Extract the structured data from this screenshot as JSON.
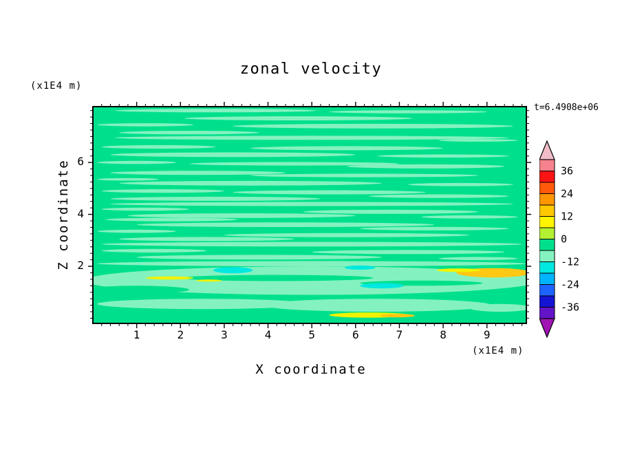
{
  "chart_data": {
    "type": "filled_contour",
    "title": "zonal velocity",
    "xlabel": "X coordinate",
    "ylabel": "Z coordinate",
    "x_unit": "(x1E4 m)",
    "y_unit": "(x1E4 m)",
    "time_label": "t=6.4908e+06",
    "x_range": [
      0,
      9.9
    ],
    "y_range": [
      -0.2,
      8.15
    ],
    "x_ticks": [
      1,
      2,
      3,
      4,
      5,
      6,
      7,
      8,
      9
    ],
    "y_ticks": [
      2,
      4,
      6
    ],
    "x_minor_step": 0.2,
    "y_minor_step": 0.25,
    "value_levels": {
      "min": -42,
      "max": 42,
      "step": 6
    },
    "background_color": "#00e08c",
    "background_value_band": [
      -6,
      0
    ],
    "streak_colors": {
      "mint": "#84f2c0",
      "cyan": "#00e8e0",
      "yellow": "#f2f200",
      "amber": "#ffc814",
      "green": "#00e08c"
    },
    "streak_value_bands": {
      "mint": [
        -12,
        -6
      ],
      "cyan": [
        -18,
        -12
      ],
      "yellow": [
        6,
        12
      ],
      "amber": [
        12,
        18
      ],
      "green": [
        -6,
        0
      ]
    },
    "streaks": [
      [
        2.8,
        8.0,
        2.3,
        0.07,
        "mint"
      ],
      [
        7.2,
        7.95,
        1.8,
        0.06,
        "mint"
      ],
      [
        4.7,
        7.7,
        2.6,
        0.08,
        "mint"
      ],
      [
        1.2,
        7.45,
        1.1,
        0.06,
        "mint"
      ],
      [
        6.4,
        7.4,
        3.2,
        0.09,
        "mint"
      ],
      [
        2.2,
        7.15,
        1.6,
        0.07,
        "mint"
      ],
      [
        5.0,
        6.95,
        4.5,
        0.08,
        "mint"
      ],
      [
        8.8,
        6.85,
        0.9,
        0.05,
        "mint"
      ],
      [
        1.5,
        6.6,
        1.3,
        0.07,
        "mint"
      ],
      [
        5.8,
        6.55,
        2.2,
        0.08,
        "mint"
      ],
      [
        3.2,
        6.3,
        2.8,
        0.09,
        "mint"
      ],
      [
        8.0,
        6.25,
        1.5,
        0.06,
        "mint"
      ],
      [
        1.0,
        6.0,
        0.9,
        0.06,
        "mint"
      ],
      [
        4.6,
        5.95,
        2.4,
        0.07,
        "mint"
      ],
      [
        7.6,
        5.85,
        1.8,
        0.08,
        "mint"
      ],
      [
        2.4,
        5.6,
        2.0,
        0.08,
        "mint"
      ],
      [
        6.2,
        5.5,
        2.6,
        0.07,
        "mint"
      ],
      [
        0.8,
        5.35,
        0.7,
        0.05,
        "mint"
      ],
      [
        3.6,
        5.2,
        3.0,
        0.09,
        "mint"
      ],
      [
        8.4,
        5.15,
        1.2,
        0.06,
        "mint"
      ],
      [
        1.6,
        4.9,
        1.4,
        0.07,
        "mint"
      ],
      [
        5.4,
        4.85,
        2.2,
        0.08,
        "mint"
      ],
      [
        7.9,
        4.7,
        1.6,
        0.07,
        "mint"
      ],
      [
        2.8,
        4.6,
        2.4,
        0.08,
        "mint"
      ],
      [
        5.0,
        4.4,
        4.6,
        0.08,
        "mint"
      ],
      [
        1.2,
        4.2,
        1.0,
        0.06,
        "mint"
      ],
      [
        6.8,
        4.1,
        2.0,
        0.08,
        "mint"
      ],
      [
        3.4,
        3.95,
        2.6,
        0.09,
        "mint"
      ],
      [
        8.6,
        3.9,
        1.1,
        0.06,
        "mint"
      ],
      [
        1.8,
        3.8,
        1.5,
        0.07,
        "mint"
      ],
      [
        4.4,
        3.6,
        3.4,
        0.09,
        "mint"
      ],
      [
        7.8,
        3.45,
        1.7,
        0.07,
        "mint"
      ],
      [
        1.0,
        3.35,
        0.9,
        0.06,
        "mint"
      ],
      [
        5.8,
        3.2,
        2.8,
        0.08,
        "mint"
      ],
      [
        2.6,
        3.05,
        2.0,
        0.08,
        "mint"
      ],
      [
        5.0,
        2.85,
        4.8,
        0.09,
        "mint"
      ],
      [
        1.4,
        2.6,
        1.2,
        0.07,
        "mint"
      ],
      [
        7.2,
        2.55,
        2.2,
        0.08,
        "mint"
      ],
      [
        3.8,
        2.35,
        2.8,
        0.09,
        "mint"
      ],
      [
        8.8,
        2.3,
        0.9,
        0.06,
        "mint"
      ],
      [
        5.0,
        2.1,
        4.9,
        0.1,
        "mint"
      ],
      [
        5.0,
        1.45,
        5.2,
        0.55,
        "mint"
      ],
      [
        4.2,
        1.55,
        2.2,
        0.12,
        "green"
      ],
      [
        7.5,
        1.35,
        1.4,
        0.1,
        "green"
      ],
      [
        1.0,
        1.1,
        1.2,
        0.15,
        "green"
      ],
      [
        3.2,
        1.85,
        0.45,
        0.12,
        "cyan"
      ],
      [
        6.6,
        1.25,
        0.5,
        0.1,
        "cyan"
      ],
      [
        6.1,
        1.95,
        0.35,
        0.08,
        "cyan"
      ],
      [
        1.75,
        1.55,
        0.55,
        0.06,
        "yellow"
      ],
      [
        2.65,
        1.45,
        0.3,
        0.04,
        "yellow"
      ],
      [
        9.15,
        1.75,
        0.85,
        0.18,
        "amber"
      ],
      [
        8.35,
        1.85,
        0.5,
        0.07,
        "yellow"
      ],
      [
        2.5,
        0.55,
        2.4,
        0.2,
        "mint"
      ],
      [
        6.5,
        0.5,
        2.6,
        0.25,
        "mint"
      ],
      [
        9.3,
        0.4,
        0.7,
        0.15,
        "mint"
      ],
      [
        6.3,
        0.12,
        0.9,
        0.1,
        "yellow"
      ],
      [
        6.95,
        0.1,
        0.4,
        0.07,
        "amber"
      ]
    ],
    "colorbar": {
      "labels": [
        36,
        24,
        12,
        0,
        -12,
        -24,
        -36
      ],
      "arrow_top": "#f0bcc8",
      "arrow_bottom": "#a014b4",
      "colors": [
        "#f5828c",
        "#fa1414",
        "#ff5a0a",
        "#ff9600",
        "#ffc800",
        "#fff500",
        "#b4f032",
        "#00e08c",
        "#84f2c0",
        "#00e8e0",
        "#00b4ff",
        "#1e64ff",
        "#1414d2",
        "#6414c8"
      ]
    },
    "description": "Zonal velocity field: values near zero everywhere; weak negative (mint/cyan) horizontal streaks across the domain; small positive (yellow/amber) patches near the bottom boundary."
  }
}
